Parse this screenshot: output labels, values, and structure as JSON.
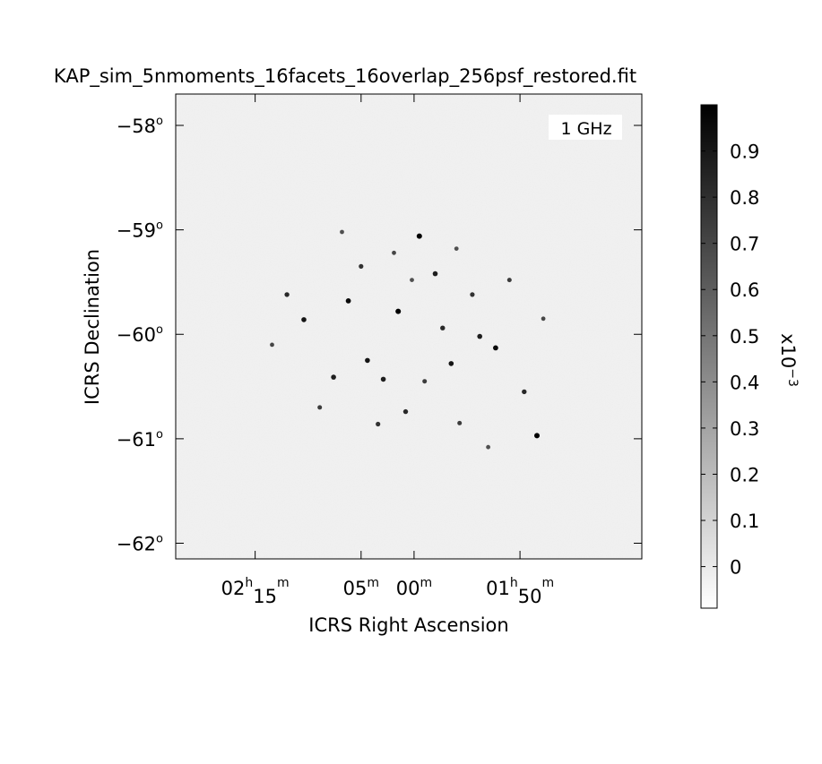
{
  "chart_data": {
    "type": "heatmap",
    "title": "KAP_sim_5nmoments_16facets_16overlap_256psf_restored.fit",
    "xlabel": "ICRS Right Ascension",
    "ylabel": "ICRS Declination",
    "annotation": "1 GHz",
    "ra_ticks": [
      {
        "label": "02",
        "sup1": "h",
        "mid": "15",
        "sup2": "m",
        "ra_min": 135
      },
      {
        "label": "05",
        "sup1": "m",
        "mid": "",
        "sup2": "",
        "ra_min": 125
      },
      {
        "label": "00",
        "sup1": "m",
        "mid": "",
        "sup2": "",
        "ra_min": 120
      },
      {
        "label": "01",
        "sup1": "h",
        "mid": "50",
        "sup2": "m",
        "ra_min": 110
      }
    ],
    "ra_range_min": [
      142.5,
      98.5
    ],
    "dec_ticks": [
      {
        "label": "−58",
        "value": -58
      },
      {
        "label": "−59",
        "value": -59
      },
      {
        "label": "−60",
        "value": -60
      },
      {
        "label": "−61",
        "value": -61
      },
      {
        "label": "−62",
        "value": -62
      }
    ],
    "dec_range": [
      -57.7,
      -62.15
    ],
    "colorbar": {
      "label": "x10^-3",
      "colormap": "greyscale (white → black)",
      "range": [
        -0.09,
        1.0
      ],
      "ticks": [
        {
          "label": "0",
          "value": 0
        },
        {
          "label": "0.1",
          "value": 0.1
        },
        {
          "label": "0.2",
          "value": 0.2
        },
        {
          "label": "0.3",
          "value": 0.3
        },
        {
          "label": "0.4",
          "value": 0.4
        },
        {
          "label": "0.5",
          "value": 0.5
        },
        {
          "label": "0.6",
          "value": 0.6
        },
        {
          "label": "0.7",
          "value": 0.7
        },
        {
          "label": "0.8",
          "value": 0.8
        },
        {
          "label": "0.9",
          "value": 0.9
        }
      ]
    },
    "field_center": {
      "ra_min": 120,
      "dec": -60.0
    },
    "sources": [
      {
        "ra_min": 119.5,
        "dec": -59.06,
        "flux": 1.0
      },
      {
        "ra_min": 108.4,
        "dec": -60.97,
        "flux": 1.0
      },
      {
        "ra_min": 121.5,
        "dec": -59.78,
        "flux": 1.0
      },
      {
        "ra_min": 126.2,
        "dec": -59.68,
        "flux": 0.95
      },
      {
        "ra_min": 112.3,
        "dec": -60.13,
        "flux": 0.95
      },
      {
        "ra_min": 116.5,
        "dec": -60.28,
        "flux": 0.9
      },
      {
        "ra_min": 130.4,
        "dec": -59.86,
        "flux": 0.9
      },
      {
        "ra_min": 124.4,
        "dec": -60.25,
        "flux": 0.9
      },
      {
        "ra_min": 118.0,
        "dec": -59.42,
        "flux": 0.85
      },
      {
        "ra_min": 122.9,
        "dec": -60.43,
        "flux": 0.85
      },
      {
        "ra_min": 113.8,
        "dec": -60.02,
        "flux": 0.85
      },
      {
        "ra_min": 127.6,
        "dec": -60.41,
        "flux": 0.85
      },
      {
        "ra_min": 109.6,
        "dec": -60.55,
        "flux": 0.8
      },
      {
        "ra_min": 120.8,
        "dec": -60.74,
        "flux": 0.8
      },
      {
        "ra_min": 132.0,
        "dec": -59.62,
        "flux": 0.8
      },
      {
        "ra_min": 117.3,
        "dec": -59.94,
        "flux": 0.8
      },
      {
        "ra_min": 125.0,
        "dec": -59.35,
        "flux": 0.75
      },
      {
        "ra_min": 114.5,
        "dec": -59.62,
        "flux": 0.75
      },
      {
        "ra_min": 123.4,
        "dec": -60.86,
        "flux": 0.75
      },
      {
        "ra_min": 111.0,
        "dec": -59.48,
        "flux": 0.7
      },
      {
        "ra_min": 128.9,
        "dec": -60.7,
        "flux": 0.7
      },
      {
        "ra_min": 115.7,
        "dec": -60.85,
        "flux": 0.7
      },
      {
        "ra_min": 119.0,
        "dec": -60.45,
        "flux": 0.7
      },
      {
        "ra_min": 121.9,
        "dec": -59.22,
        "flux": 0.65
      },
      {
        "ra_min": 133.4,
        "dec": -60.1,
        "flux": 0.65
      },
      {
        "ra_min": 107.8,
        "dec": -59.85,
        "flux": 0.65
      },
      {
        "ra_min": 126.8,
        "dec": -59.02,
        "flux": 0.6
      },
      {
        "ra_min": 113.0,
        "dec": -61.08,
        "flux": 0.6
      },
      {
        "ra_min": 120.2,
        "dec": -59.48,
        "flux": 0.6
      },
      {
        "ra_min": 116.0,
        "dec": -59.18,
        "flux": 0.6
      }
    ]
  }
}
